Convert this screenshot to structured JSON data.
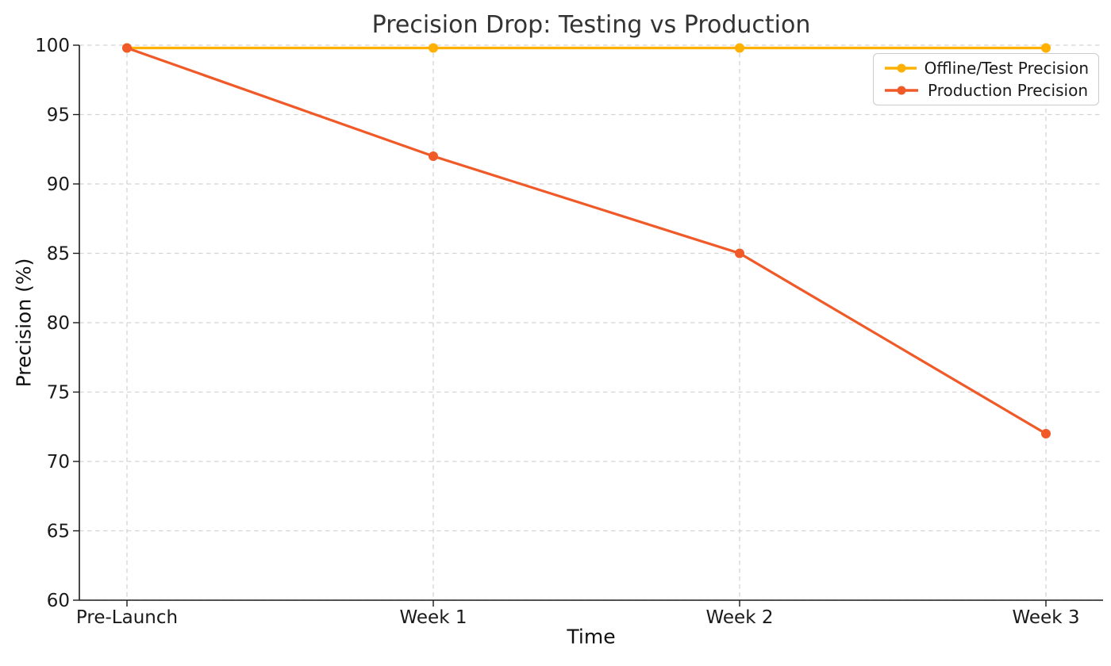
{
  "chart_data": {
    "type": "line",
    "title": "Precision Drop: Testing vs Production",
    "xlabel": "Time",
    "ylabel": "Precision (%)",
    "categories": [
      "Pre-Launch",
      "Week 1",
      "Week 2",
      "Week 3"
    ],
    "series": [
      {
        "name": "Offline/Test Precision",
        "color": "#FFB000",
        "marker": "circle",
        "values": [
          99.8,
          99.8,
          99.8,
          99.8
        ]
      },
      {
        "name": "Production Precision",
        "color": "#F05A28",
        "marker": "circle",
        "values": [
          99.8,
          92,
          85,
          72
        ]
      }
    ],
    "ylim": [
      60,
      100
    ],
    "yticks": [
      60,
      65,
      70,
      75,
      80,
      85,
      90,
      95,
      100
    ],
    "grid": true,
    "grid_style": "dashed",
    "grid_color": "#d4d4d4",
    "legend_position": "upper right",
    "spines": [
      "left",
      "bottom"
    ]
  }
}
